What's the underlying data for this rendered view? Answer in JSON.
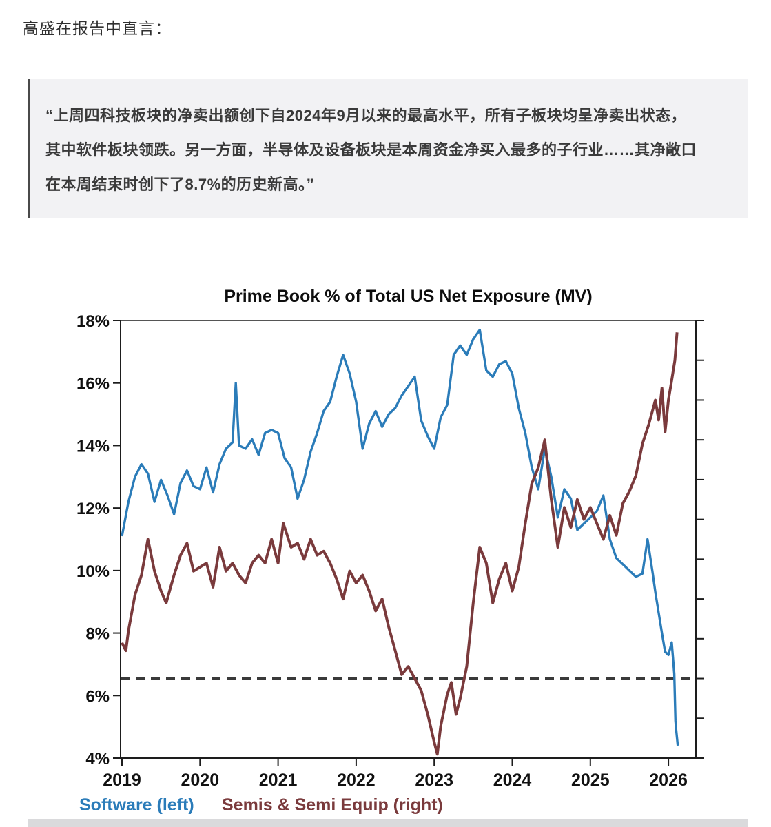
{
  "page": {
    "intro_text": "高盛在报告中直言：",
    "quote_lines": [
      "“上周四科技板块的净卖出额创下自2024年9月以来的最高水平，所有子板块均呈净卖出状态，",
      "其中软件板块领跌。另一方面，半导体及设备板块是本周资金净买入最多的子行业……其净敞口",
      "在本周结束时创下了8.7%的历史新高。”"
    ]
  },
  "chart_data": {
    "type": "line",
    "title": "Prime Book % of Total US Net Exposure (MV)",
    "grid": false,
    "legend_position": "bottom",
    "x_axis": {
      "min": 2019,
      "max": 2026.35,
      "ticks": [
        2019,
        2020,
        2021,
        2022,
        2023,
        2024,
        2025,
        2026
      ]
    },
    "left_axis": {
      "min": 4,
      "max": 18,
      "step": 2,
      "unit": "%"
    },
    "right_axis": {
      "min": -2,
      "max": 9,
      "step": 1,
      "unit": "%"
    },
    "zero_line": {
      "axis": "right",
      "value": 0,
      "style": "dashed"
    },
    "legend": [
      {
        "label": "Software (left)",
        "color": "#2b7cb9",
        "x": 18
      },
      {
        "label": "Semis & Semi Equip (right)",
        "color": "#7a3a3c",
        "x": 225
      }
    ],
    "series": [
      {
        "name": "Software (left)",
        "axis": "left",
        "color": "#2b7cb9",
        "width": 3.4,
        "points": [
          [
            2019.0,
            11.1
          ],
          [
            2019.083,
            12.2
          ],
          [
            2019.167,
            13.0
          ],
          [
            2019.25,
            13.4
          ],
          [
            2019.333,
            13.1
          ],
          [
            2019.417,
            12.2
          ],
          [
            2019.5,
            12.9
          ],
          [
            2019.583,
            12.4
          ],
          [
            2019.667,
            11.8
          ],
          [
            2019.75,
            12.8
          ],
          [
            2019.833,
            13.2
          ],
          [
            2019.917,
            12.7
          ],
          [
            2020.0,
            12.6
          ],
          [
            2020.083,
            13.3
          ],
          [
            2020.167,
            12.5
          ],
          [
            2020.25,
            13.4
          ],
          [
            2020.333,
            13.9
          ],
          [
            2020.417,
            14.1
          ],
          [
            2020.458,
            16.0
          ],
          [
            2020.5,
            14.0
          ],
          [
            2020.583,
            13.9
          ],
          [
            2020.667,
            14.2
          ],
          [
            2020.75,
            13.7
          ],
          [
            2020.833,
            14.4
          ],
          [
            2020.917,
            14.5
          ],
          [
            2021.0,
            14.4
          ],
          [
            2021.083,
            13.6
          ],
          [
            2021.167,
            13.3
          ],
          [
            2021.25,
            12.3
          ],
          [
            2021.333,
            12.9
          ],
          [
            2021.417,
            13.8
          ],
          [
            2021.5,
            14.4
          ],
          [
            2021.583,
            15.1
          ],
          [
            2021.667,
            15.4
          ],
          [
            2021.75,
            16.2
          ],
          [
            2021.833,
            16.9
          ],
          [
            2021.917,
            16.3
          ],
          [
            2022.0,
            15.4
          ],
          [
            2022.083,
            13.9
          ],
          [
            2022.167,
            14.7
          ],
          [
            2022.25,
            15.1
          ],
          [
            2022.333,
            14.6
          ],
          [
            2022.417,
            15.0
          ],
          [
            2022.5,
            15.2
          ],
          [
            2022.583,
            15.6
          ],
          [
            2022.667,
            15.9
          ],
          [
            2022.75,
            16.2
          ],
          [
            2022.833,
            14.8
          ],
          [
            2022.917,
            14.3
          ],
          [
            2023.0,
            13.9
          ],
          [
            2023.083,
            14.9
          ],
          [
            2023.167,
            15.3
          ],
          [
            2023.25,
            16.9
          ],
          [
            2023.333,
            17.2
          ],
          [
            2023.417,
            16.9
          ],
          [
            2023.5,
            17.4
          ],
          [
            2023.583,
            17.7
          ],
          [
            2023.667,
            16.4
          ],
          [
            2023.75,
            16.2
          ],
          [
            2023.833,
            16.6
          ],
          [
            2023.917,
            16.7
          ],
          [
            2024.0,
            16.3
          ],
          [
            2024.083,
            15.2
          ],
          [
            2024.167,
            14.4
          ],
          [
            2024.25,
            13.3
          ],
          [
            2024.333,
            12.6
          ],
          [
            2024.417,
            13.9
          ],
          [
            2024.5,
            13.0
          ],
          [
            2024.583,
            11.7
          ],
          [
            2024.667,
            12.6
          ],
          [
            2024.75,
            12.3
          ],
          [
            2024.833,
            11.3
          ],
          [
            2024.917,
            11.5
          ],
          [
            2025.0,
            11.7
          ],
          [
            2025.083,
            11.9
          ],
          [
            2025.167,
            12.4
          ],
          [
            2025.25,
            11.0
          ],
          [
            2025.333,
            10.4
          ],
          [
            2025.417,
            10.2
          ],
          [
            2025.5,
            10.0
          ],
          [
            2025.583,
            9.8
          ],
          [
            2025.667,
            9.9
          ],
          [
            2025.733,
            11.0
          ],
          [
            2025.8,
            9.9
          ],
          [
            2025.833,
            9.3
          ],
          [
            2025.917,
            8.0
          ],
          [
            2025.958,
            7.4
          ],
          [
            2026.0,
            7.3
          ],
          [
            2026.042,
            7.7
          ],
          [
            2026.075,
            6.7
          ],
          [
            2026.09,
            5.2
          ],
          [
            2026.1,
            4.9
          ],
          [
            2026.12,
            4.4
          ]
        ]
      },
      {
        "name": "Semis & Semi Equip (right)",
        "axis": "right",
        "color": "#7a3a3c",
        "width": 4,
        "points": [
          [
            2019.0,
            0.9
          ],
          [
            2019.05,
            0.7
          ],
          [
            2019.083,
            1.2
          ],
          [
            2019.167,
            2.1
          ],
          [
            2019.25,
            2.6
          ],
          [
            2019.333,
            3.5
          ],
          [
            2019.417,
            2.7
          ],
          [
            2019.5,
            2.2
          ],
          [
            2019.567,
            1.9
          ],
          [
            2019.667,
            2.6
          ],
          [
            2019.75,
            3.1
          ],
          [
            2019.833,
            3.4
          ],
          [
            2019.917,
            2.7
          ],
          [
            2020.0,
            2.8
          ],
          [
            2020.083,
            2.9
          ],
          [
            2020.167,
            2.3
          ],
          [
            2020.25,
            3.3
          ],
          [
            2020.333,
            2.7
          ],
          [
            2020.417,
            2.9
          ],
          [
            2020.5,
            2.6
          ],
          [
            2020.583,
            2.4
          ],
          [
            2020.667,
            2.9
          ],
          [
            2020.75,
            3.1
          ],
          [
            2020.833,
            2.9
          ],
          [
            2020.917,
            3.5
          ],
          [
            2021.0,
            2.9
          ],
          [
            2021.067,
            3.9
          ],
          [
            2021.167,
            3.3
          ],
          [
            2021.25,
            3.4
          ],
          [
            2021.333,
            3.0
          ],
          [
            2021.417,
            3.5
          ],
          [
            2021.5,
            3.1
          ],
          [
            2021.583,
            3.2
          ],
          [
            2021.667,
            2.9
          ],
          [
            2021.75,
            2.5
          ],
          [
            2021.833,
            2.0
          ],
          [
            2021.917,
            2.7
          ],
          [
            2022.0,
            2.4
          ],
          [
            2022.083,
            2.6
          ],
          [
            2022.167,
            2.2
          ],
          [
            2022.25,
            1.7
          ],
          [
            2022.333,
            2.0
          ],
          [
            2022.417,
            1.3
          ],
          [
            2022.5,
            0.7
          ],
          [
            2022.583,
            0.1
          ],
          [
            2022.667,
            0.3
          ],
          [
            2022.75,
            0.0
          ],
          [
            2022.833,
            -0.3
          ],
          [
            2022.917,
            -0.9
          ],
          [
            2023.0,
            -1.6
          ],
          [
            2023.04,
            -1.9
          ],
          [
            2023.083,
            -1.2
          ],
          [
            2023.167,
            -0.4
          ],
          [
            2023.22,
            -0.1
          ],
          [
            2023.28,
            -0.9
          ],
          [
            2023.333,
            -0.5
          ],
          [
            2023.417,
            0.3
          ],
          [
            2023.5,
            1.9
          ],
          [
            2023.583,
            3.3
          ],
          [
            2023.667,
            2.9
          ],
          [
            2023.75,
            1.9
          ],
          [
            2023.833,
            2.5
          ],
          [
            2023.917,
            2.9
          ],
          [
            2024.0,
            2.2
          ],
          [
            2024.083,
            2.8
          ],
          [
            2024.167,
            3.9
          ],
          [
            2024.25,
            4.9
          ],
          [
            2024.333,
            5.3
          ],
          [
            2024.417,
            6.0
          ],
          [
            2024.5,
            4.5
          ],
          [
            2024.583,
            3.3
          ],
          [
            2024.667,
            4.3
          ],
          [
            2024.75,
            3.8
          ],
          [
            2024.833,
            4.5
          ],
          [
            2024.917,
            4.0
          ],
          [
            2025.0,
            4.3
          ],
          [
            2025.083,
            3.9
          ],
          [
            2025.167,
            3.5
          ],
          [
            2025.25,
            4.1
          ],
          [
            2025.333,
            3.6
          ],
          [
            2025.417,
            4.4
          ],
          [
            2025.5,
            4.7
          ],
          [
            2025.583,
            5.1
          ],
          [
            2025.667,
            5.9
          ],
          [
            2025.75,
            6.4
          ],
          [
            2025.833,
            7.0
          ],
          [
            2025.875,
            6.5
          ],
          [
            2025.917,
            7.3
          ],
          [
            2025.958,
            6.2
          ],
          [
            2026.0,
            7.0
          ],
          [
            2026.042,
            7.5
          ],
          [
            2026.083,
            8.0
          ],
          [
            2026.11,
            8.7
          ]
        ]
      }
    ]
  }
}
